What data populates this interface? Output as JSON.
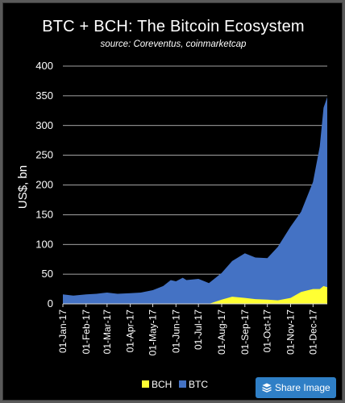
{
  "chart_data": {
    "type": "area",
    "title": "BTC + BCH:  The Bitcoin Ecosystem",
    "subtitle": "source:  Coreventus, coinmarketcap",
    "ylabel": "US$, bn",
    "xlabel": "",
    "ylim": [
      0,
      400
    ],
    "yticks": [
      "0",
      "50",
      "100",
      "150",
      "200",
      "250",
      "300",
      "350",
      "400"
    ],
    "xticks": [
      "01-Jan-17",
      "01-Feb-17",
      "01-Mar-17",
      "01-Apr-17",
      "01-May-17",
      "01-Jun-17",
      "01-Jul-17",
      "01-Aug-17",
      "01-Sep-17",
      "01-Oct-17",
      "01-Nov-17",
      "01-Dec-17"
    ],
    "grid": true,
    "stacked": true,
    "legend_position": "bottom",
    "colors": {
      "BCH": "#ffff33",
      "BTC": "#4472c4"
    },
    "x": [
      "01-Jan-17",
      "15-Jan-17",
      "01-Feb-17",
      "15-Feb-17",
      "01-Mar-17",
      "15-Mar-17",
      "01-Apr-17",
      "15-Apr-17",
      "01-May-17",
      "15-May-17",
      "25-May-17",
      "01-Jun-17",
      "10-Jun-17",
      "15-Jun-17",
      "01-Jul-17",
      "15-Jul-17",
      "01-Aug-17",
      "15-Aug-17",
      "01-Sep-17",
      "15-Sep-17",
      "01-Oct-17",
      "15-Oct-17",
      "01-Nov-17",
      "15-Nov-17",
      "01-Dec-17",
      "10-Dec-17",
      "15-Dec-17",
      "20-Dec-17"
    ],
    "series": [
      {
        "name": "BCH",
        "values": [
          0,
          0,
          0,
          0,
          0,
          0,
          0,
          0,
          0,
          0,
          0,
          0,
          0,
          0,
          0,
          0,
          7,
          12,
          10,
          8,
          7,
          6,
          10,
          20,
          25,
          25,
          30,
          28
        ]
      },
      {
        "name": "BTC",
        "values": [
          16,
          14,
          16,
          17,
          19,
          17,
          18,
          19,
          23,
          30,
          40,
          38,
          44,
          40,
          42,
          35,
          45,
          60,
          75,
          70,
          70,
          90,
          120,
          135,
          180,
          240,
          300,
          320
        ]
      }
    ]
  },
  "legend": [
    {
      "label": "BCH",
      "color": "#ffff33"
    },
    {
      "label": "BTC",
      "color": "#4472c4"
    }
  ],
  "share_button": {
    "label": "Share Image"
  }
}
